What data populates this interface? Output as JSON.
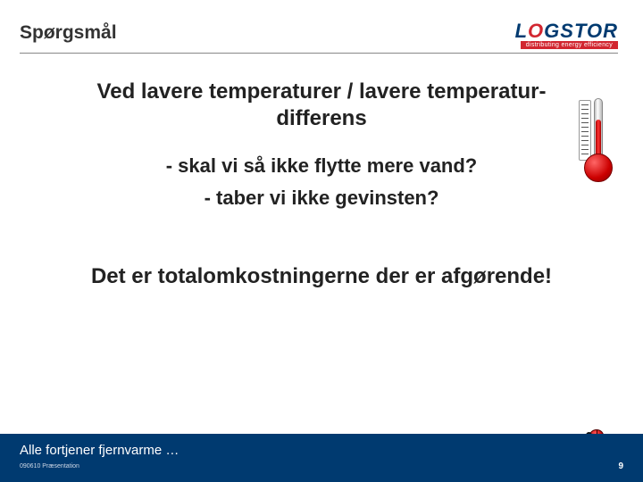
{
  "header": {
    "title": "Spørgsmål",
    "logo": {
      "brand_pre": "L",
      "brand_o": "O",
      "brand_post": "GSTOR",
      "tagline": "distributing energy efficiency"
    }
  },
  "content": {
    "heading": "Ved lavere temperaturer / lavere temperatur-differens",
    "bullet1": "-  skal vi så ikke flytte mere vand?",
    "bullet2": "- taber vi ikke gevinsten?",
    "conclusion": "Det er totalomkostningerne der er afgørende!"
  },
  "footer": {
    "tagline": "Alle fortjener fjernvarme …",
    "copyright": "090610 Præsentation",
    "page": "9"
  },
  "colors": {
    "brand_blue": "#003a70",
    "brand_red": "#d22630",
    "text": "#222222",
    "divider": "#888888",
    "background": "#ffffff"
  }
}
